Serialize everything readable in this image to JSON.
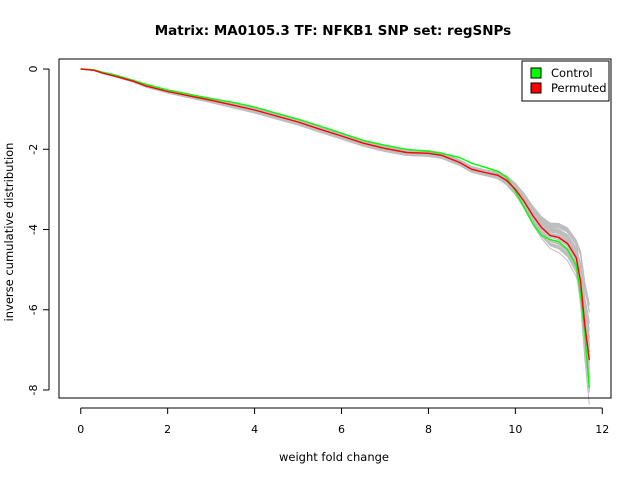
{
  "chart_data": {
    "type": "line",
    "title": "Matrix: MA0105.3 TF: NFKB1 SNP set: regSNPs",
    "xlabel": "weight fold change",
    "ylabel": "inverse cumulative distribution",
    "xlim": [
      -0.5,
      12.2
    ],
    "ylim": [
      -8.2,
      0.25
    ],
    "x_ticks": [
      0,
      2,
      4,
      6,
      8,
      10,
      12
    ],
    "y_ticks": [
      0,
      -2,
      -4,
      -6,
      -8
    ],
    "grid": false,
    "legend_position": "top-right",
    "background_series_count": 60,
    "background_series_color": "#bebebe",
    "series": [
      {
        "name": "Control",
        "color": "#00ff00",
        "x": [
          0,
          0.3,
          0.5,
          0.8,
          1.2,
          1.5,
          2,
          2.5,
          3,
          3.5,
          4,
          4.5,
          5,
          5.5,
          6,
          6.5,
          7,
          7.5,
          8,
          8.3,
          8.7,
          9,
          9.3,
          9.6,
          9.8,
          10,
          10.2,
          10.4,
          10.6,
          10.8,
          11,
          11.2,
          11.4,
          11.5,
          11.6,
          11.7
        ],
        "y": [
          0,
          -0.02,
          -0.08,
          -0.15,
          -0.28,
          -0.38,
          -0.52,
          -0.63,
          -0.74,
          -0.83,
          -0.95,
          -1.1,
          -1.25,
          -1.42,
          -1.6,
          -1.78,
          -1.9,
          -2.0,
          -2.05,
          -2.1,
          -2.2,
          -2.35,
          -2.45,
          -2.55,
          -2.7,
          -3.05,
          -3.45,
          -3.85,
          -4.15,
          -4.25,
          -4.3,
          -4.5,
          -4.9,
          -5.6,
          -6.6,
          -7.95
        ]
      },
      {
        "name": "Permuted",
        "color": "#ff0000",
        "x": [
          0,
          0.3,
          0.5,
          0.8,
          1.2,
          1.5,
          2,
          2.5,
          3,
          3.5,
          4,
          4.5,
          5,
          5.5,
          6,
          6.5,
          7,
          7.5,
          8,
          8.3,
          8.7,
          9,
          9.3,
          9.6,
          9.8,
          10,
          10.2,
          10.4,
          10.6,
          10.8,
          11,
          11.2,
          11.4,
          11.5,
          11.6,
          11.7
        ],
        "y": [
          0,
          -0.03,
          -0.1,
          -0.18,
          -0.3,
          -0.42,
          -0.56,
          -0.67,
          -0.78,
          -0.9,
          -1.02,
          -1.17,
          -1.32,
          -1.5,
          -1.67,
          -1.85,
          -1.98,
          -2.08,
          -2.1,
          -2.15,
          -2.32,
          -2.5,
          -2.58,
          -2.65,
          -2.78,
          -3.0,
          -3.3,
          -3.65,
          -3.95,
          -4.15,
          -4.2,
          -4.35,
          -4.7,
          -5.3,
          -6.4,
          -7.25
        ]
      }
    ]
  }
}
